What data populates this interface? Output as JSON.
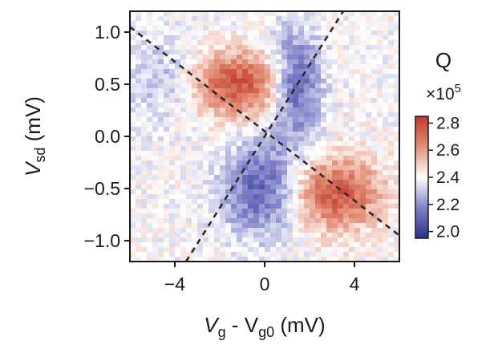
{
  "chart_data": {
    "type": "heatmap",
    "title": "",
    "xlabel": {
      "main": "V",
      "sub1": "g",
      "mid": " - V",
      "sub2": "g0",
      "unit": " (mV)"
    },
    "ylabel": {
      "main": "V",
      "sub": "sd",
      "unit": " (mV)"
    },
    "xlim": [
      -6,
      6
    ],
    "ylim": [
      -1.2,
      1.2
    ],
    "x_ticks": [
      -4,
      0,
      4
    ],
    "x_tick_labels": [
      "−4",
      "0",
      "4"
    ],
    "y_ticks": [
      1.0,
      0.5,
      0.0,
      -0.5,
      -1.0
    ],
    "y_tick_labels": [
      "1.0",
      "0.5",
      "0.0",
      "−0.5",
      "−1.0"
    ],
    "colorbar": {
      "label": "Q",
      "scale_prefix": "×10",
      "scale_exp": "5",
      "range": [
        1.95,
        2.85
      ],
      "ticks": [
        2.8,
        2.6,
        2.4,
        2.2,
        2.0
      ],
      "tick_labels": [
        "2.8",
        "2.6",
        "2.4",
        "2.2",
        "2.0"
      ],
      "colormap": [
        "#2b2f8c",
        "#7e82c8",
        "#ffffff",
        "#e38f77",
        "#c0392b"
      ]
    },
    "dashed_lines": [
      {
        "x1": -6,
        "y1": 1.05,
        "x2": 6,
        "y2": -0.95
      },
      {
        "x1": -3.5,
        "y1": -1.2,
        "x2": 3.5,
        "y2": 1.2
      }
    ],
    "features": [
      {
        "x": -1.2,
        "y": 0.5,
        "amplitude": 0.38,
        "sx": 1.5,
        "sy": 0.22,
        "note": "upper-left red lobe"
      },
      {
        "x": 3.2,
        "y": -0.55,
        "amplitude": 0.36,
        "sx": 1.4,
        "sy": 0.24,
        "note": "lower-right red lobe"
      },
      {
        "x": 1.4,
        "y": 0.5,
        "amplitude": -0.33,
        "sx": 0.8,
        "sy": 0.35,
        "note": "upper-right blue lobe"
      },
      {
        "x": -0.2,
        "y": -0.5,
        "amplitude": -0.3,
        "sx": 1.2,
        "sy": 0.32,
        "note": "lower-left blue lobe"
      },
      {
        "x": -4.5,
        "y": 0.55,
        "amplitude": -0.12,
        "sx": 1.2,
        "sy": 0.3,
        "note": "far-left blue tint"
      }
    ],
    "background_value": 2.4
  }
}
